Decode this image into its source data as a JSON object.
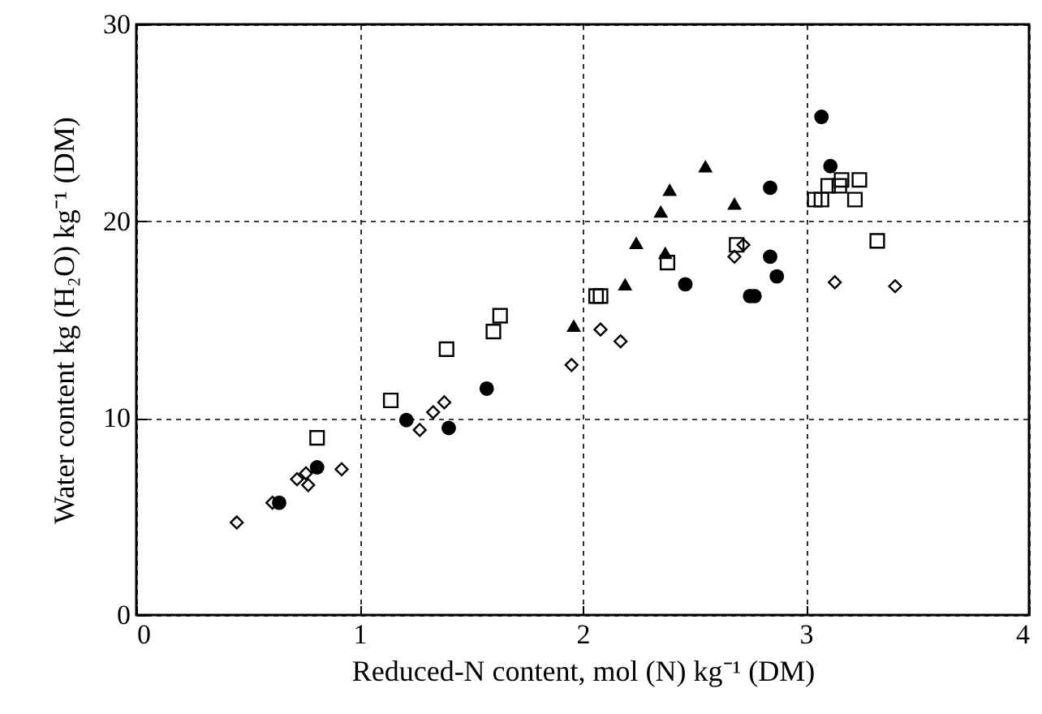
{
  "chart_data": {
    "type": "scatter",
    "xlabel": "Reduced-N content, mol (N) kg⁻¹ (DM)",
    "ylabel": "Water content kg (H₂O) kg⁻¹ (DM)",
    "xlim": [
      0,
      4
    ],
    "xticks": [
      0,
      1,
      2,
      3,
      4
    ],
    "ylim": [
      0,
      30
    ],
    "yticks": [
      0,
      10,
      20,
      30
    ],
    "grid": true,
    "series": [
      {
        "color": "#000000",
        "marker": "circle",
        "x": [
          0.64,
          0.81,
          1.21,
          1.4,
          1.57,
          2.46,
          2.75,
          2.77,
          2.84,
          2.87,
          2.84,
          3.07,
          3.11
        ],
        "values": [
          5.7,
          7.5,
          9.9,
          9.5,
          11.5,
          16.8,
          16.2,
          16.2,
          18.2,
          17.2,
          21.7,
          25.3,
          22.8
        ]
      },
      {
        "color": "#000000",
        "marker": "triangle",
        "x": [
          1.96,
          2.19,
          2.24,
          2.35,
          2.37,
          2.39,
          2.55,
          2.68
        ],
        "values": [
          14.7,
          16.8,
          18.9,
          20.5,
          18.4,
          21.6,
          22.8,
          20.9
        ]
      },
      {
        "color": "#000000",
        "marker": "square",
        "x": [
          0.81,
          1.14,
          1.39,
          1.6,
          1.63,
          2.06,
          2.08,
          2.38,
          2.69,
          3.04,
          3.07,
          3.1,
          3.15,
          3.16,
          3.24,
          3.22,
          3.32
        ],
        "values": [
          9.0,
          10.9,
          13.5,
          14.4,
          15.2,
          16.2,
          16.2,
          17.9,
          18.8,
          21.1,
          21.1,
          21.8,
          21.8,
          22.1,
          22.1,
          21.1,
          19.0
        ]
      },
      {
        "color": "#000000",
        "marker": "diamond",
        "x": [
          0.45,
          0.61,
          0.72,
          0.76,
          0.77,
          0.92,
          1.27,
          1.33,
          1.38,
          1.95,
          2.08,
          2.17,
          2.68,
          2.72,
          3.13,
          3.4
        ],
        "values": [
          4.7,
          5.7,
          6.9,
          7.2,
          6.6,
          7.4,
          9.4,
          10.3,
          10.8,
          12.7,
          14.5,
          13.9,
          18.2,
          18.8,
          16.9,
          16.7
        ]
      }
    ]
  }
}
